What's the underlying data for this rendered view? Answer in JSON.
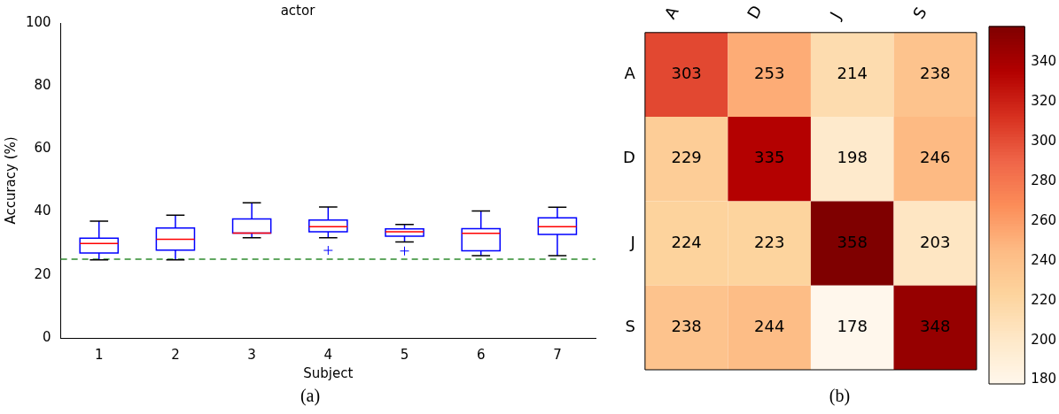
{
  "chart_data": [
    {
      "type": "box",
      "title": "actor",
      "xlabel": "Subject",
      "ylabel": "Accuracy (%)",
      "categories": [
        "1",
        "2",
        "3",
        "4",
        "5",
        "6",
        "7"
      ],
      "ylim": [
        0,
        100
      ],
      "yticks": [
        0,
        20,
        40,
        60,
        80,
        100
      ],
      "grid": false,
      "legend": false,
      "boxes": [
        {
          "low": 24.8,
          "q1": 27.0,
          "median": 30.0,
          "q3": 31.7,
          "high": 37.1
        },
        {
          "low": 24.8,
          "q1": 27.9,
          "median": 31.3,
          "q3": 34.9,
          "high": 39.0
        },
        {
          "low": 31.8,
          "q1": 33.3,
          "median": 33.3,
          "q3": 37.8,
          "high": 42.9
        },
        {
          "low": 31.8,
          "q1": 33.7,
          "median": 35.3,
          "q3": 37.4,
          "high": 41.6,
          "outliers": [
            27.8
          ]
        },
        {
          "low": 30.5,
          "q1": 32.3,
          "median": 33.7,
          "q3": 34.6,
          "high": 36.0,
          "outliers": [
            27.6
          ]
        },
        {
          "low": 26.1,
          "q1": 27.7,
          "median": 33.2,
          "q3": 34.7,
          "high": 40.3
        },
        {
          "low": 26.1,
          "q1": 32.9,
          "median": 35.3,
          "q3": 38.1,
          "high": 41.5
        }
      ],
      "ref_lines": [
        {
          "axis": "y",
          "value": 25,
          "color": "#2e8b2e",
          "line_style": "dashed"
        }
      ],
      "annotations": [
        "(a)"
      ]
    },
    {
      "type": "heatmap",
      "categories": [
        "A",
        "D",
        "J",
        "S"
      ],
      "y_categories": [
        "A",
        "D",
        "J",
        "S"
      ],
      "cells": [
        [
          303,
          253,
          214,
          238
        ],
        [
          229,
          335,
          198,
          246
        ],
        [
          224,
          223,
          358,
          203
        ],
        [
          238,
          244,
          178,
          348
        ]
      ],
      "data_labels": true,
      "clim": [
        178,
        358
      ],
      "cticks": [
        180,
        200,
        220,
        240,
        260,
        280,
        300,
        320,
        340
      ],
      "annotations": [
        "(b)"
      ]
    }
  ]
}
